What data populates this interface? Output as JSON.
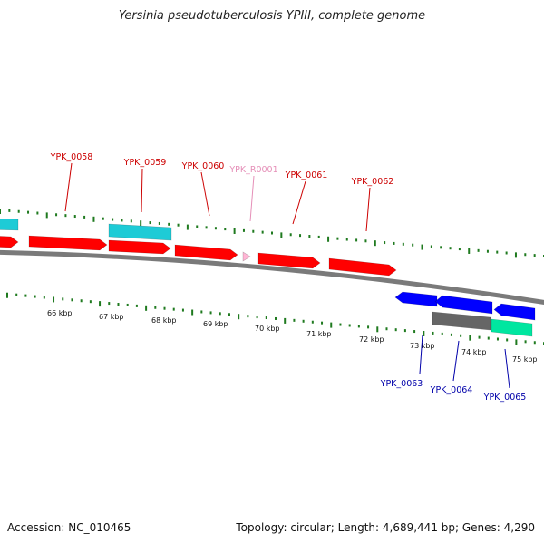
{
  "header": {
    "title": "Yersinia pseudotuberculosis YPIII, complete genome"
  },
  "footer": {
    "accession": "Accession: NC_010465",
    "summary": "Topology: circular; Length: 4,689,441 bp; Genes: 4,290"
  },
  "colors": {
    "backbone": "#7a7a7a",
    "tick": "#1f7a1f",
    "label_forward": "#cc0000",
    "label_rna": "#e58fb8",
    "label_reverse": "#0000aa",
    "kbp_label": "#111111"
  },
  "ruler": {
    "unit": "kbp",
    "labels": [
      "66 kbp",
      "67 kbp",
      "68 kbp",
      "69 kbp",
      "70 kbp",
      "71 kbp",
      "72 kbp",
      "73 kbp",
      "74 kbp",
      "75 kbp"
    ]
  },
  "genes": [
    {
      "strand": "+",
      "track": "main",
      "color": "#ff0000",
      "label": ""
    },
    {
      "strand": "+",
      "track": "main",
      "color": "#ff0000",
      "label": "YPK_0058"
    },
    {
      "strand": "+",
      "track": "main",
      "color": "#ff0000",
      "label": "YPK_0059"
    },
    {
      "strand": "+",
      "track": "main",
      "color": "#ff0000",
      "label": "YPK_0060"
    },
    {
      "strand": "+",
      "track": "main",
      "color": "#ffb6d5",
      "label": "YPK_R0001"
    },
    {
      "strand": "+",
      "track": "main",
      "color": "#ff0000",
      "label": "YPK_0061"
    },
    {
      "strand": "+",
      "track": "main",
      "color": "#ff0000",
      "label": "YPK_0062"
    },
    {
      "strand": "+",
      "track": "outer",
      "color": "#1ecbd6",
      "label": ""
    },
    {
      "strand": "+",
      "track": "outer",
      "color": "#1ecbd6",
      "label": ""
    },
    {
      "strand": "-",
      "track": "main",
      "color": "#0000ff",
      "label": "YPK_0063"
    },
    {
      "strand": "-",
      "track": "main",
      "color": "#0000ff",
      "label": "YPK_0064"
    },
    {
      "strand": "-",
      "track": "main",
      "color": "#0000ff",
      "label": "YPK_0065"
    },
    {
      "strand": "-",
      "track": "inner",
      "color": "#666666",
      "label": ""
    },
    {
      "strand": "-",
      "track": "inner",
      "color": "#00e6a0",
      "label": ""
    }
  ]
}
